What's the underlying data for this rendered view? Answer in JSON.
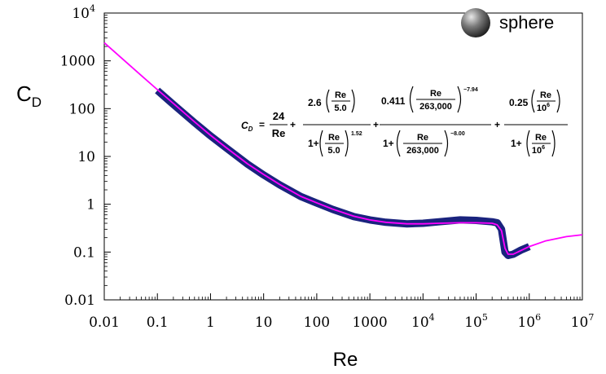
{
  "chart_data": {
    "type": "line",
    "title": "",
    "xlabel": "Re",
    "ylabel": {
      "main": "C",
      "sub": "D"
    },
    "x_scale": "log",
    "y_scale": "log",
    "xlim": [
      0.01,
      10000000
    ],
    "ylim": [
      0.01,
      10000
    ],
    "grid": false,
    "legend_position": "top-right",
    "legend": {
      "label": "sphere",
      "marker": "sphere"
    },
    "x_tick_labels": [
      {
        "value": 0.01,
        "text": "0.01"
      },
      {
        "value": 0.1,
        "text": "0.1"
      },
      {
        "value": 1,
        "text": "1"
      },
      {
        "value": 10,
        "text": "10"
      },
      {
        "value": 100,
        "text": "100"
      },
      {
        "value": 1000,
        "text": "1000"
      },
      {
        "value": 10000,
        "base": "10",
        "exp": "4"
      },
      {
        "value": 100000,
        "base": "10",
        "exp": "5"
      },
      {
        "value": 1000000,
        "base": "10",
        "exp": "6"
      },
      {
        "value": 10000000,
        "base": "10",
        "exp": "7"
      }
    ],
    "y_tick_labels": [
      {
        "value": 0.01,
        "text": "0.01"
      },
      {
        "value": 0.1,
        "text": "0.1"
      },
      {
        "value": 1,
        "text": "1"
      },
      {
        "value": 10,
        "text": "10"
      },
      {
        "value": 100,
        "text": "100"
      },
      {
        "value": 1000,
        "text": "1000"
      },
      {
        "value": 10000,
        "base": "10",
        "exp": "4"
      }
    ],
    "series": [
      {
        "style": "thick-navy-band",
        "color": "#1a237e",
        "x": [
          0.1,
          0.2,
          0.5,
          1,
          2,
          5,
          10,
          20,
          50,
          100,
          200,
          500,
          1000,
          2000,
          5000,
          10000,
          20000,
          50000,
          100000,
          200000,
          250000,
          300000,
          350000,
          400000,
          500000,
          700000,
          1000000
        ],
        "y": [
          240,
          122,
          51,
          27,
          14.9,
          6.9,
          4.1,
          2.55,
          1.45,
          1.06,
          0.78,
          0.55,
          0.47,
          0.42,
          0.39,
          0.4,
          0.43,
          0.47,
          0.46,
          0.43,
          0.41,
          0.3,
          0.1,
          0.085,
          0.09,
          0.11,
          0.13
        ]
      },
      {
        "style": "thin-magenta-fit",
        "color": "#ff00ff",
        "x": [
          0.01,
          0.02,
          0.05,
          0.1,
          0.2,
          0.5,
          1,
          2,
          5,
          10,
          20,
          50,
          100,
          200,
          500,
          1000,
          2000,
          5000,
          10000,
          20000,
          50000,
          100000,
          200000,
          250000,
          300000,
          350000,
          400000,
          500000,
          1000000,
          2000000,
          5000000,
          10000000
        ],
        "y": [
          2400,
          1210,
          490,
          250,
          128,
          53,
          27.7,
          15.1,
          7.0,
          4.2,
          2.6,
          1.46,
          1.07,
          0.79,
          0.56,
          0.47,
          0.42,
          0.39,
          0.39,
          0.4,
          0.41,
          0.41,
          0.4,
          0.37,
          0.28,
          0.12,
          0.09,
          0.09,
          0.13,
          0.17,
          0.21,
          0.23
        ]
      }
    ],
    "equation": {
      "lhs": "C",
      "lhs_sub": "D",
      "term1": {
        "num": "24",
        "den": "Re"
      },
      "term2": {
        "coef": "2.6",
        "re": "Re",
        "scale": "5.0",
        "den_one": "1+",
        "den_exp": "1.52"
      },
      "term3": {
        "coef": "0.411",
        "re": "Re",
        "scale": "263,000",
        "num_exp": "−7.94",
        "den_one": "1+",
        "den_exp": "−8.00"
      },
      "term4": {
        "coef": "0.25",
        "re": "Re",
        "scale_base": "10",
        "scale_exp": "6",
        "den_one": "1+"
      }
    }
  }
}
